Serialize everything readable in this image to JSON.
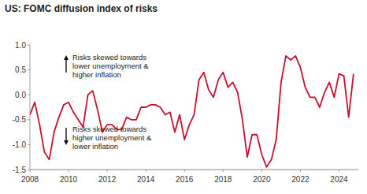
{
  "chart_data": {
    "type": "line",
    "title": "US: FOMC diffusion index of risks",
    "annotations": [
      [
        "Risks skewed towards",
        "lower unemployment &",
        "higher inflation"
      ],
      [
        "Risks skewed towards",
        "higher unemployment &",
        "lower inflation"
      ]
    ],
    "x": [
      2008.0,
      2008.25,
      2008.5,
      2008.75,
      2009.0,
      2009.25,
      2009.5,
      2009.75,
      2010.0,
      2010.25,
      2010.5,
      2010.75,
      2011.0,
      2011.25,
      2011.5,
      2011.75,
      2012.0,
      2012.25,
      2012.5,
      2012.75,
      2013.0,
      2013.25,
      2013.5,
      2013.75,
      2014.0,
      2014.25,
      2014.5,
      2014.75,
      2015.0,
      2015.25,
      2015.5,
      2015.75,
      2016.0,
      2016.25,
      2016.5,
      2016.75,
      2017.0,
      2017.25,
      2017.5,
      2017.75,
      2018.0,
      2018.25,
      2018.5,
      2018.75,
      2019.0,
      2019.25,
      2019.5,
      2019.75,
      2020.0,
      2020.25,
      2020.5,
      2020.75,
      2021.0,
      2021.25,
      2021.5,
      2021.75,
      2022.0,
      2022.25,
      2022.5,
      2022.75,
      2023.0,
      2023.25,
      2023.5,
      2023.75,
      2024.0,
      2024.25,
      2024.5,
      2024.75
    ],
    "values": [
      -0.4,
      -0.15,
      -0.6,
      -1.15,
      -1.3,
      -0.75,
      -0.45,
      -0.2,
      -0.15,
      -0.35,
      -0.5,
      -0.65,
      0.0,
      0.08,
      -0.3,
      -0.75,
      -0.6,
      -0.6,
      -0.7,
      -0.7,
      -0.45,
      -0.5,
      -0.5,
      -0.25,
      -0.25,
      -0.2,
      -0.2,
      -0.25,
      -0.4,
      -0.35,
      -0.75,
      -0.4,
      -0.9,
      -0.6,
      -0.4,
      0.3,
      0.45,
      0.1,
      -0.05,
      0.3,
      0.45,
      0.15,
      0.25,
      0.05,
      -0.5,
      -1.25,
      -0.8,
      -0.8,
      -1.2,
      -1.45,
      -1.3,
      -0.9,
      0.25,
      0.78,
      0.7,
      0.78,
      0.55,
      0.15,
      -0.05,
      -0.05,
      -0.25,
      0.05,
      0.25,
      -0.05,
      0.42,
      0.38,
      -0.45,
      0.42
    ],
    "color": "#c8102e",
    "xlim": [
      2008,
      2025
    ],
    "xticks": [
      2008,
      2010,
      2012,
      2014,
      2016,
      2018,
      2020,
      2022,
      2024
    ],
    "ylim": [
      -1.5,
      1.0
    ],
    "yticks": [
      {
        "value": -1.5,
        "label": "-1.5"
      },
      {
        "value": -1.0,
        "label": "-1.0"
      },
      {
        "value": -0.5,
        "label": "-0.5"
      },
      {
        "value": 0.0,
        "label": "0.0"
      },
      {
        "value": 0.5,
        "label": "0.5"
      },
      {
        "value": 1.0,
        "label": "1.0"
      }
    ],
    "grid": false
  }
}
